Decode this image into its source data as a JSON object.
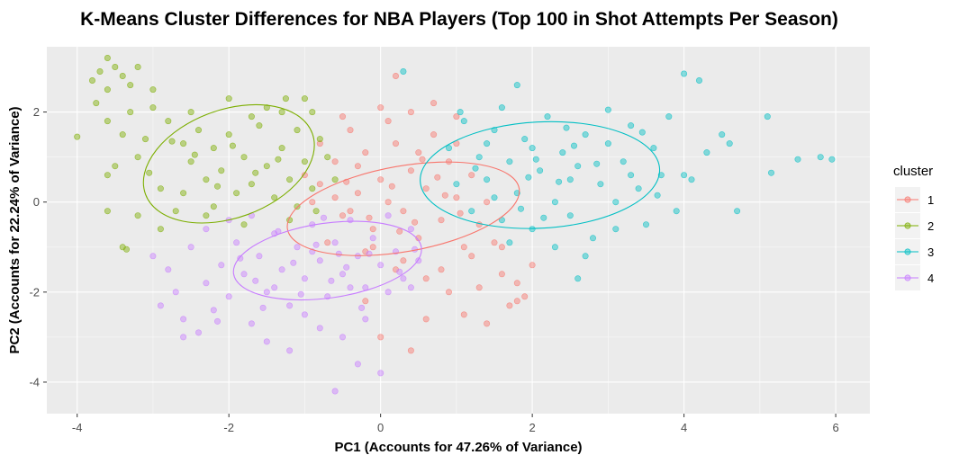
{
  "chart_data": {
    "type": "scatter",
    "title": "K-Means Cluster Differences for NBA Players (Top 100 in Shot Attempts Per Season)",
    "xlabel": "PC1 (Accounts for 47.26% of Variance)",
    "ylabel": "PC2 (Accounts for 22.24% of Variance)",
    "xlim": [
      -4.4,
      6.45
    ],
    "ylim": [
      -4.7,
      3.45
    ],
    "x_ticks": [
      -4,
      -2,
      0,
      2,
      4,
      6
    ],
    "y_ticks": [
      -4,
      -2,
      0,
      2
    ],
    "x_tick_labels": [
      "-4",
      "-2",
      "0",
      "2",
      "4",
      "6"
    ],
    "y_tick_labels": [
      "-4",
      "-2",
      "0",
      "2"
    ],
    "grid": true,
    "legend": {
      "title": "cluster",
      "position": "right"
    },
    "series": [
      {
        "name": "1",
        "color": "#F8766D",
        "ellipse": {
          "cx": 0.3,
          "cy": -0.15,
          "rx": 1.55,
          "ry": 0.95,
          "angle_deg": -10
        },
        "points": [
          [
            -0.8,
            0.4
          ],
          [
            -0.6,
            0.9
          ],
          [
            -0.5,
            -0.3
          ],
          [
            -0.3,
            0.2
          ],
          [
            -0.2,
            1.1
          ],
          [
            -0.1,
            -0.6
          ],
          [
            0.0,
            0.5
          ],
          [
            0.1,
            0.0
          ],
          [
            0.2,
            1.3
          ],
          [
            0.3,
            -0.2
          ],
          [
            0.4,
            0.7
          ],
          [
            0.5,
            -0.8
          ],
          [
            0.6,
            0.3
          ],
          [
            0.7,
            1.5
          ],
          [
            0.8,
            -0.4
          ],
          [
            0.9,
            0.9
          ],
          [
            1.0,
            0.1
          ],
          [
            1.1,
            -1.0
          ],
          [
            1.2,
            0.6
          ],
          [
            1.3,
            -0.5
          ],
          [
            -0.7,
            -0.9
          ],
          [
            -0.4,
            1.6
          ],
          [
            -0.2,
            -1.1
          ],
          [
            0.1,
            1.8
          ],
          [
            0.3,
            -1.3
          ],
          [
            0.5,
            1.1
          ],
          [
            0.8,
            -1.5
          ],
          [
            1.0,
            1.3
          ],
          [
            1.2,
            -1.2
          ],
          [
            1.4,
            0.0
          ],
          [
            1.5,
            -0.9
          ],
          [
            1.6,
            -1.6
          ],
          [
            1.8,
            -1.8
          ],
          [
            1.9,
            -2.1
          ],
          [
            1.7,
            -2.3
          ],
          [
            2.0,
            -1.4
          ],
          [
            1.6,
            -1.0
          ],
          [
            1.3,
            -1.9
          ],
          [
            0.9,
            -2.0
          ],
          [
            0.6,
            -1.7
          ],
          [
            0.2,
            -1.5
          ],
          [
            -0.1,
            -1.0
          ],
          [
            -0.4,
            -0.2
          ],
          [
            -0.6,
            0.1
          ],
          [
            -0.9,
            0.0
          ],
          [
            -1.0,
            0.6
          ],
          [
            -0.8,
            1.3
          ],
          [
            -0.5,
            1.9
          ],
          [
            0.0,
            2.1
          ],
          [
            0.4,
            2.0
          ],
          [
            0.7,
            2.2
          ],
          [
            1.0,
            1.9
          ],
          [
            0.6,
            -2.6
          ],
          [
            1.1,
            -2.5
          ],
          [
            -0.2,
            -2.2
          ],
          [
            0.0,
            -3.0
          ],
          [
            0.4,
            -3.3
          ],
          [
            1.4,
            -2.7
          ],
          [
            1.8,
            -2.2
          ],
          [
            0.2,
            2.8
          ],
          [
            -0.3,
            0.8
          ],
          [
            0.15,
            0.35
          ],
          [
            0.45,
            -0.45
          ],
          [
            0.75,
            0.55
          ],
          [
            1.05,
            -0.25
          ],
          [
            -0.15,
            -0.35
          ],
          [
            0.55,
            0.95
          ],
          [
            0.25,
            -0.65
          ],
          [
            0.85,
            0.15
          ],
          [
            -0.45,
            0.45
          ]
        ]
      },
      {
        "name": "2",
        "color": "#7CAE00",
        "ellipse": {
          "cx": -2.0,
          "cy": 0.85,
          "rx": 1.17,
          "ry": 1.2,
          "angle_deg": -20
        },
        "points": [
          [
            -4.0,
            1.45
          ],
          [
            -3.8,
            2.7
          ],
          [
            -3.7,
            2.9
          ],
          [
            -3.6,
            3.2
          ],
          [
            -3.5,
            3.0
          ],
          [
            -3.6,
            2.5
          ],
          [
            -3.4,
            2.8
          ],
          [
            -3.3,
            2.6
          ],
          [
            -3.2,
            3.0
          ],
          [
            -3.75,
            2.2
          ],
          [
            -3.6,
            1.8
          ],
          [
            -3.4,
            1.5
          ],
          [
            -3.3,
            2.0
          ],
          [
            -3.1,
            1.4
          ],
          [
            -3.0,
            2.1
          ],
          [
            -3.2,
            1.0
          ],
          [
            -3.5,
            0.8
          ],
          [
            -3.6,
            0.6
          ],
          [
            -3.0,
            2.5
          ],
          [
            -2.9,
            0.3
          ],
          [
            -2.8,
            1.8
          ],
          [
            -2.6,
            1.3
          ],
          [
            -2.5,
            0.9
          ],
          [
            -2.4,
            1.6
          ],
          [
            -2.3,
            0.5
          ],
          [
            -2.2,
            1.2
          ],
          [
            -2.1,
            0.7
          ],
          [
            -2.0,
            1.5
          ],
          [
            -1.9,
            0.2
          ],
          [
            -1.8,
            1.0
          ],
          [
            -1.7,
            0.4
          ],
          [
            -1.6,
            1.7
          ],
          [
            -1.5,
            0.8
          ],
          [
            -1.4,
            0.1
          ],
          [
            -1.3,
            1.2
          ],
          [
            -1.2,
            0.5
          ],
          [
            -1.1,
            -0.1
          ],
          [
            -1.0,
            0.9
          ],
          [
            -0.9,
            0.3
          ],
          [
            -0.8,
            1.4
          ],
          [
            -2.7,
            -0.2
          ],
          [
            -2.5,
            2.0
          ],
          [
            -2.3,
            -0.3
          ],
          [
            -2.0,
            2.3
          ],
          [
            -1.8,
            -0.5
          ],
          [
            -1.5,
            2.1
          ],
          [
            -1.2,
            -0.4
          ],
          [
            -1.0,
            2.3
          ],
          [
            -3.6,
            -0.2
          ],
          [
            -3.4,
            -1.0
          ],
          [
            -3.2,
            -0.3
          ],
          [
            -2.9,
            -0.6
          ],
          [
            -2.6,
            0.2
          ],
          [
            -2.2,
            -0.1
          ],
          [
            -1.7,
            1.9
          ],
          [
            -1.3,
            2.0
          ],
          [
            -1.1,
            1.6
          ],
          [
            -0.9,
            2.0
          ],
          [
            -0.7,
            1.0
          ],
          [
            -0.6,
            0.5
          ],
          [
            -2.45,
            1.05
          ],
          [
            -2.15,
            0.35
          ],
          [
            -1.95,
            1.25
          ],
          [
            -1.65,
            0.65
          ],
          [
            -1.35,
            0.95
          ],
          [
            -2.75,
            1.35
          ],
          [
            -3.05,
            0.65
          ],
          [
            -1.25,
            2.3
          ],
          [
            -0.85,
            -0.2
          ],
          [
            -3.35,
            -1.05
          ]
        ]
      },
      {
        "name": "3",
        "color": "#00BFC4",
        "ellipse": {
          "cx": 2.1,
          "cy": 0.6,
          "rx": 1.58,
          "ry": 1.18,
          "angle_deg": -3
        },
        "points": [
          [
            0.9,
            1.2
          ],
          [
            1.0,
            0.4
          ],
          [
            1.1,
            1.8
          ],
          [
            1.2,
            -0.2
          ],
          [
            1.3,
            1.0
          ],
          [
            1.4,
            0.5
          ],
          [
            1.5,
            1.6
          ],
          [
            1.6,
            -0.4
          ],
          [
            1.7,
            0.9
          ],
          [
            1.8,
            0.2
          ],
          [
            1.9,
            1.4
          ],
          [
            2.0,
            -0.6
          ],
          [
            2.1,
            0.7
          ],
          [
            2.2,
            1.9
          ],
          [
            2.3,
            0.0
          ],
          [
            2.4,
            1.1
          ],
          [
            2.5,
            -0.3
          ],
          [
            2.6,
            0.8
          ],
          [
            2.7,
            1.5
          ],
          [
            2.8,
            -0.8
          ],
          [
            2.9,
            0.4
          ],
          [
            3.0,
            1.3
          ],
          [
            3.1,
            0.0
          ],
          [
            3.2,
            0.9
          ],
          [
            3.3,
            1.7
          ],
          [
            3.4,
            0.3
          ],
          [
            3.5,
            -0.5
          ],
          [
            3.6,
            1.2
          ],
          [
            3.7,
            0.6
          ],
          [
            3.8,
            1.9
          ],
          [
            3.9,
            -0.2
          ],
          [
            4.0,
            0.6
          ],
          [
            4.1,
            0.5
          ],
          [
            4.3,
            1.1
          ],
          [
            4.5,
            1.5
          ],
          [
            4.6,
            1.3
          ],
          [
            4.7,
            -0.2
          ],
          [
            5.1,
            1.9
          ],
          [
            5.15,
            0.65
          ],
          [
            5.5,
            0.95
          ],
          [
            5.8,
            1.0
          ],
          [
            5.95,
            0.95
          ],
          [
            4.0,
            2.85
          ],
          [
            4.2,
            2.7
          ],
          [
            3.0,
            2.05
          ],
          [
            2.7,
            -1.2
          ],
          [
            2.3,
            -1.0
          ],
          [
            1.8,
            2.6
          ],
          [
            1.6,
            2.1
          ],
          [
            1.05,
            2.0
          ],
          [
            0.3,
            2.9
          ],
          [
            1.4,
            1.3
          ],
          [
            2.5,
            0.5
          ],
          [
            3.3,
            0.6
          ],
          [
            2.0,
            1.2
          ],
          [
            1.7,
            -0.9
          ],
          [
            2.6,
            -1.7
          ],
          [
            1.5,
            0.1
          ],
          [
            3.1,
            -0.6
          ],
          [
            2.35,
            0.45
          ],
          [
            2.05,
            0.95
          ],
          [
            2.55,
            1.25
          ],
          [
            1.85,
            -0.15
          ],
          [
            3.45,
            1.55
          ],
          [
            1.25,
            0.75
          ],
          [
            2.85,
            0.85
          ],
          [
            3.65,
            0.15
          ],
          [
            2.15,
            -0.35
          ],
          [
            1.95,
            0.55
          ],
          [
            2.45,
            1.65
          ]
        ]
      },
      {
        "name": "4",
        "color": "#C77CFF",
        "ellipse": {
          "cx": -0.7,
          "cy": -1.3,
          "rx": 1.25,
          "ry": 0.83,
          "angle_deg": -8
        },
        "points": [
          [
            -3.0,
            -1.2
          ],
          [
            -2.9,
            -2.3
          ],
          [
            -2.8,
            -1.5
          ],
          [
            -2.7,
            -2.0
          ],
          [
            -2.6,
            -2.6
          ],
          [
            -2.5,
            -1.0
          ],
          [
            -2.4,
            -2.9
          ],
          [
            -2.3,
            -1.8
          ],
          [
            -2.2,
            -2.4
          ],
          [
            -2.1,
            -1.4
          ],
          [
            -2.0,
            -2.1
          ],
          [
            -1.9,
            -0.9
          ],
          [
            -1.8,
            -1.6
          ],
          [
            -1.7,
            -2.7
          ],
          [
            -1.6,
            -1.2
          ],
          [
            -1.5,
            -2.0
          ],
          [
            -1.4,
            -0.7
          ],
          [
            -1.3,
            -1.5
          ],
          [
            -1.2,
            -2.3
          ],
          [
            -1.1,
            -1.0
          ],
          [
            -1.0,
            -1.7
          ],
          [
            -0.9,
            -0.5
          ],
          [
            -0.8,
            -1.3
          ],
          [
            -0.7,
            -2.1
          ],
          [
            -0.6,
            -0.9
          ],
          [
            -0.5,
            -1.6
          ],
          [
            -0.4,
            -0.4
          ],
          [
            -0.3,
            -1.2
          ],
          [
            -0.2,
            -1.9
          ],
          [
            -0.1,
            -0.8
          ],
          [
            0.0,
            -1.4
          ],
          [
            0.1,
            -2.0
          ],
          [
            0.2,
            -1.1
          ],
          [
            0.3,
            -1.7
          ],
          [
            0.4,
            -0.6
          ],
          [
            0.5,
            -1.3
          ],
          [
            -1.5,
            -3.1
          ],
          [
            -1.2,
            -3.3
          ],
          [
            -0.8,
            -2.8
          ],
          [
            -0.5,
            -3.0
          ],
          [
            -0.2,
            -2.6
          ],
          [
            0.0,
            -3.8
          ],
          [
            -0.6,
            -4.2
          ],
          [
            -0.3,
            -3.6
          ],
          [
            -2.6,
            -3.0
          ],
          [
            -1.0,
            -2.5
          ],
          [
            -2.0,
            -0.4
          ],
          [
            -1.7,
            -0.3
          ],
          [
            -1.4,
            -1.9
          ],
          [
            -0.9,
            -1.1
          ],
          [
            -0.4,
            -1.9
          ],
          [
            0.1,
            -0.3
          ],
          [
            0.4,
            -1.9
          ],
          [
            -2.3,
            -0.6
          ],
          [
            -1.15,
            -1.35
          ],
          [
            -0.85,
            -0.95
          ],
          [
            -0.45,
            -1.45
          ],
          [
            -1.65,
            -1.75
          ],
          [
            -0.15,
            -1.15
          ],
          [
            -1.35,
            -0.65
          ],
          [
            -0.65,
            -1.75
          ],
          [
            -1.85,
            -1.25
          ],
          [
            0.25,
            -1.55
          ],
          [
            -2.15,
            -2.65
          ],
          [
            -1.05,
            -2.05
          ],
          [
            -0.25,
            -2.35
          ],
          [
            0.45,
            -1.05
          ],
          [
            -0.75,
            -0.35
          ],
          [
            -1.55,
            -2.35
          ],
          [
            -0.55,
            -1.15
          ]
        ]
      }
    ]
  }
}
